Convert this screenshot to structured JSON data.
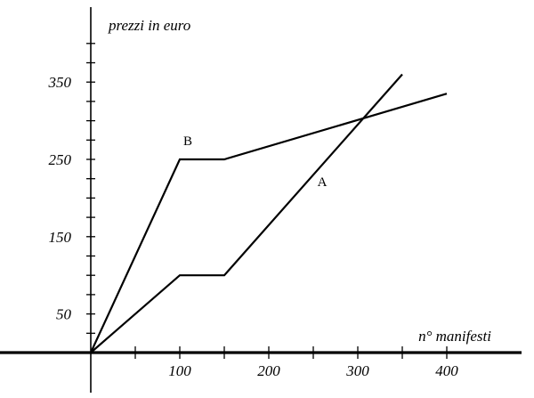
{
  "chart_data": {
    "type": "line",
    "title": "",
    "xlabel": "n° manifesti",
    "ylabel": "prezzi in euro",
    "xlim": [
      -100,
      485
    ],
    "ylim": [
      -50,
      450
    ],
    "x_ticks": [
      50,
      100,
      150,
      200,
      250,
      300,
      350,
      400
    ],
    "x_tick_labels": [
      {
        "value": 100,
        "label": "100"
      },
      {
        "value": 200,
        "label": "200"
      },
      {
        "value": 300,
        "label": "300"
      },
      {
        "value": 400,
        "label": "400"
      }
    ],
    "y_ticks": [
      25,
      50,
      75,
      100,
      125,
      150,
      175,
      200,
      225,
      250,
      275,
      300,
      325,
      350,
      375,
      400
    ],
    "y_tick_labels": [
      {
        "value": 50,
        "label": "50"
      },
      {
        "value": 150,
        "label": "150"
      },
      {
        "value": 250,
        "label": "250"
      },
      {
        "value": 350,
        "label": "350"
      }
    ],
    "grid": false,
    "series": [
      {
        "name": "A",
        "points": [
          [
            0,
            0
          ],
          [
            100,
            100
          ],
          [
            150,
            100
          ],
          [
            350,
            360
          ]
        ]
      },
      {
        "name": "B",
        "points": [
          [
            0,
            0
          ],
          [
            100,
            250
          ],
          [
            150,
            250
          ],
          [
            400,
            335
          ]
        ]
      }
    ]
  }
}
